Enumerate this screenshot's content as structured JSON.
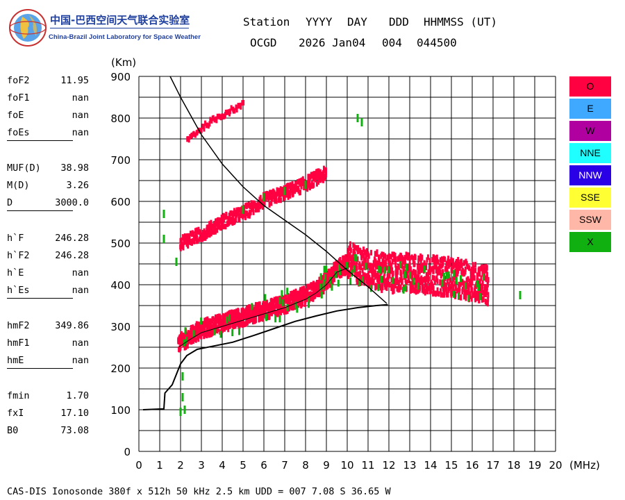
{
  "logo": {
    "cn_text": "中国-巴西空间天气联合实验室",
    "en_text": "China-Brazil Joint Laboratory for Space Weather"
  },
  "header": {
    "row1": {
      "c1": "Station",
      "c2": "YYYY",
      "c3": "DAY",
      "c4": "DDD",
      "c5": "HHMMSS (UT)"
    },
    "row2": {
      "c1": "OCGD",
      "c2": "2026 Jan04",
      "c3": "004",
      "c4": "044500"
    }
  },
  "parameters": [
    [
      {
        "name": "foF2",
        "value": "11.95"
      },
      {
        "name": "foF1",
        "value": "nan"
      },
      {
        "name": "foE",
        "value": "nan"
      },
      {
        "name": "foEs",
        "value": "nan"
      }
    ],
    [
      {
        "name": "MUF(D)",
        "value": "38.98"
      },
      {
        "name": "M(D)",
        "value": "3.26"
      },
      {
        "name": "D",
        "value": "3000.0"
      }
    ],
    [
      {
        "name": "h`F",
        "value": "246.28"
      },
      {
        "name": "h`F2",
        "value": "246.28"
      },
      {
        "name": "h`E",
        "value": "nan"
      },
      {
        "name": "h`Es",
        "value": "nan"
      }
    ],
    [
      {
        "name": "hmF2",
        "value": "349.86"
      },
      {
        "name": "hmF1",
        "value": "nan"
      },
      {
        "name": "hmE",
        "value": "nan"
      }
    ],
    [
      {
        "name": "fmin",
        "value": "1.70"
      },
      {
        "name": "fxI",
        "value": "17.10"
      },
      {
        "name": "B0",
        "value": "73.08"
      }
    ]
  ],
  "legend": [
    {
      "label": "O",
      "color": "#ff0040",
      "text_color": "#000000"
    },
    {
      "label": "E",
      "color": "#3fa9ff",
      "text_color": "#000000"
    },
    {
      "label": "W",
      "color": "#b000a0",
      "text_color": "#000000"
    },
    {
      "label": "NNE",
      "color": "#20ffff",
      "text_color": "#000000"
    },
    {
      "label": "NNW",
      "color": "#2a00e6",
      "text_color": "#ffffff"
    },
    {
      "label": "SSE",
      "color": "#ffff33",
      "text_color": "#000000"
    },
    {
      "label": "SSW",
      "color": "#ffb8a8",
      "text_color": "#000000"
    },
    {
      "label": "X",
      "color": "#10b010",
      "text_color": "#000000"
    }
  ],
  "footer": "CAS-DIS Ionosonde 380f x 512h 50 kHz 2.5 km UDD = 007 7.08 S 36.65 W",
  "chart_data": {
    "type": "scatter",
    "xlabel": "(MHz)",
    "ylabel": "(Km)",
    "xlim": [
      0,
      20
    ],
    "ylim": [
      0,
      900
    ],
    "x_ticks": [
      0,
      1,
      2,
      3,
      4,
      5,
      6,
      7,
      8,
      9,
      10,
      11,
      12,
      13,
      14,
      15,
      16,
      17,
      18,
      19,
      20
    ],
    "y_ticks": [
      0,
      100,
      200,
      300,
      400,
      500,
      600,
      700,
      800,
      900
    ],
    "grid": true,
    "colors": {
      "o_trace": "#ff0040",
      "x_trace": "#10b010",
      "profile": "#000000"
    },
    "traces": {
      "o_first_hop": [
        [
          1.9,
          250
        ],
        [
          2.5,
          270
        ],
        [
          3,
          285
        ],
        [
          4,
          300
        ],
        [
          5,
          315
        ],
        [
          6,
          330
        ],
        [
          7,
          345
        ],
        [
          8,
          365
        ],
        [
          8.5,
          380
        ],
        [
          9,
          400
        ],
        [
          9.5,
          430
        ],
        [
          10,
          440
        ]
      ],
      "o_second_hop": [
        [
          2,
          495
        ],
        [
          3,
          515
        ],
        [
          4,
          545
        ],
        [
          5,
          565
        ],
        [
          6,
          595
        ],
        [
          7,
          615
        ],
        [
          8,
          635
        ],
        [
          8.5,
          650
        ],
        [
          9,
          660
        ]
      ],
      "o_third_hop": [
        [
          2.3,
          745
        ],
        [
          2.8,
          765
        ],
        [
          3.5,
          790
        ],
        [
          4.2,
          810
        ],
        [
          5,
          830
        ]
      ],
      "o_spread_f": [
        [
          10,
          440
        ],
        [
          11,
          420
        ],
        [
          12,
          410
        ],
        [
          13,
          410
        ],
        [
          14,
          405
        ],
        [
          15,
          400
        ],
        [
          16,
          390
        ],
        [
          16.8,
          380
        ]
      ],
      "x_points": [
        [
          1.2,
          570
        ],
        [
          1.2,
          510
        ],
        [
          1.8,
          455
        ],
        [
          2,
          95
        ],
        [
          2.1,
          180
        ],
        [
          2.1,
          130
        ],
        [
          2.2,
          100
        ],
        [
          10.5,
          800
        ],
        [
          10.7,
          790
        ],
        [
          18.3,
          375
        ],
        [
          5,
          580
        ],
        [
          6,
          610
        ],
        [
          7,
          625
        ],
        [
          8,
          640
        ]
      ]
    },
    "profile": [
      [
        0.2,
        100
      ],
      [
        1.2,
        102
      ],
      [
        1.25,
        140
      ],
      [
        1.6,
        160
      ],
      [
        1.8,
        185
      ],
      [
        2.0,
        210
      ],
      [
        2.3,
        230
      ],
      [
        2.8,
        245
      ],
      [
        3.5,
        252
      ],
      [
        4.5,
        262
      ],
      [
        5.5,
        278
      ],
      [
        6.5,
        295
      ],
      [
        7.5,
        312
      ],
      [
        8.5,
        325
      ],
      [
        9.5,
        337
      ],
      [
        10.5,
        345
      ],
      [
        11.4,
        350
      ],
      [
        11.95,
        352
      ]
    ],
    "virtual_height": [
      [
        1.5,
        900
      ],
      [
        2,
        850
      ],
      [
        3,
        760
      ],
      [
        4,
        690
      ],
      [
        5,
        635
      ],
      [
        6,
        590
      ],
      [
        7,
        555
      ],
      [
        8,
        520
      ],
      [
        9,
        480
      ],
      [
        10,
        435
      ],
      [
        11,
        395
      ],
      [
        11.9,
        355
      ]
    ]
  }
}
